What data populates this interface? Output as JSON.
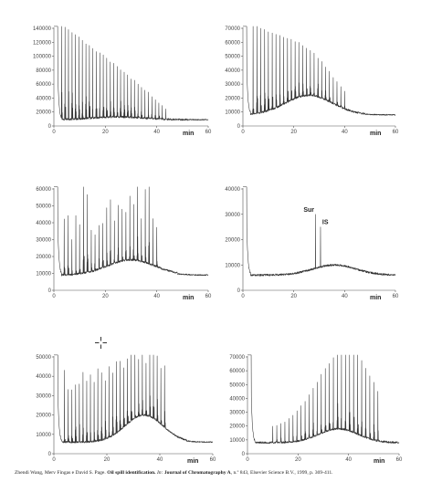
{
  "citation": {
    "authors": "Zhendi Wang, Merv Fingas e David S. Page.",
    "title": "Oil spill identification.",
    "in": "In:",
    "journal": "Journal of Chromatography A",
    "rest": ", n.º 843, Elsevier Science B.V., 1999, p. 369-411."
  },
  "icons": {
    "cursor": "crosshair-cursor-icon"
  },
  "chart_data": [
    {
      "type": "line",
      "panel": "top-left",
      "xlabel": "min",
      "xlim": [
        0,
        60
      ],
      "x_ticks": [
        "0",
        "20",
        "40",
        "60"
      ],
      "ylim": [
        0,
        140000
      ],
      "y_ticks": [
        "0",
        "20000",
        "40000",
        "60000",
        "80000",
        "100000",
        "120000",
        "140000"
      ],
      "profile": "homologous n-alkane peaks decreasing with retention time over low unresolved hump",
      "peaks": {
        "start": 3,
        "end": 44,
        "step": 1.35,
        "max": 138000,
        "min": 18000,
        "decay": "linear"
      },
      "baseline": {
        "level": 9000,
        "hump_center": 25,
        "hump_width": 14,
        "hump_height": 4000
      },
      "annotations": []
    },
    {
      "type": "line",
      "panel": "top-right",
      "xlabel": "min",
      "xlim": [
        0,
        60
      ],
      "x_ticks": [
        "0",
        "20",
        "40",
        "60"
      ],
      "ylim": [
        0,
        70000
      ],
      "y_ticks": [
        "0",
        "10000",
        "20000",
        "30000",
        "40000",
        "50000",
        "60000",
        "70000"
      ],
      "profile": "n-alkane peaks with pronounced unresolved complex mixture hump",
      "peaks": {
        "start": 4,
        "end": 40,
        "step": 1.5,
        "max": 67000,
        "min": 14000,
        "decay": "linear"
      },
      "baseline": {
        "level": 8000,
        "hump_center": 26,
        "hump_width": 13,
        "hump_height": 14000
      },
      "annotations": []
    },
    {
      "type": "line",
      "panel": "middle-left",
      "xlabel": "min",
      "xlim": [
        0,
        60
      ],
      "x_ticks": [
        "0",
        "20",
        "40",
        "60"
      ],
      "ylim": [
        0,
        60000
      ],
      "y_ticks": [
        "0",
        "10000",
        "20000",
        "30000",
        "40000",
        "50000",
        "60000"
      ],
      "profile": "irregular n-alkane peaks on broad hump",
      "peaks": {
        "start": 4,
        "end": 40,
        "step": 1.5,
        "max": 58000,
        "min": 22000,
        "decay": "random"
      },
      "baseline": {
        "level": 9000,
        "hump_center": 30,
        "hump_width": 13,
        "hump_height": 9000
      },
      "annotations": []
    },
    {
      "type": "line",
      "panel": "middle-right",
      "xlabel": "min",
      "xlim": [
        0,
        60
      ],
      "x_ticks": [
        "0",
        "20",
        "40",
        "60"
      ],
      "ylim": [
        0,
        40000
      ],
      "y_ticks": [
        "0",
        "10000",
        "20000",
        "30000",
        "40000"
      ],
      "profile": "weathered residue: smooth hump with surrogate and internal standard peaks only",
      "peaks": {
        "start": 0,
        "end": 0,
        "step": 0,
        "max": 0,
        "min": 0,
        "decay": "none"
      },
      "baseline": {
        "level": 6000,
        "hump_center": 36,
        "hump_width": 12,
        "hump_height": 4000
      },
      "annotations": [
        {
          "label": "Sur",
          "x": 28.5,
          "y": 30000
        },
        {
          "label": "IS",
          "x": 30.5,
          "y": 25000
        }
      ]
    },
    {
      "type": "line",
      "panel": "bottom-left",
      "xlabel": "min",
      "xlim": [
        0,
        60
      ],
      "x_ticks": [
        "0",
        "20",
        "40",
        "60"
      ],
      "ylim": [
        0,
        50000
      ],
      "y_ticks": [
        "0",
        "10000",
        "20000",
        "30000",
        "40000",
        "50000"
      ],
      "profile": "n-alkane peaks on hump rising toward 38 min",
      "peaks": {
        "start": 4,
        "end": 42,
        "step": 1.4,
        "max": 40000,
        "min": 28000,
        "decay": "random"
      },
      "baseline": {
        "level": 6000,
        "hump_center": 34,
        "hump_width": 10,
        "hump_height": 14000
      },
      "annotations": []
    },
    {
      "type": "line",
      "panel": "bottom-right",
      "xlabel": "min",
      "xlim": [
        0,
        60
      ],
      "x_ticks": [
        "0",
        "20",
        "40",
        "60"
      ],
      "ylim": [
        0,
        70000
      ],
      "y_ticks": [
        "0",
        "10000",
        "20000",
        "30000",
        "40000",
        "50000",
        "60000",
        "70000"
      ],
      "profile": "heavier oil: peaks growing to a maximum near 37 min",
      "peaks": {
        "start": 10,
        "end": 52,
        "step": 1.6,
        "max": 62000,
        "min": 14000,
        "decay": "rise"
      },
      "baseline": {
        "level": 8000,
        "hump_center": 36,
        "hump_width": 11,
        "hump_height": 10000
      },
      "annotations": []
    }
  ]
}
